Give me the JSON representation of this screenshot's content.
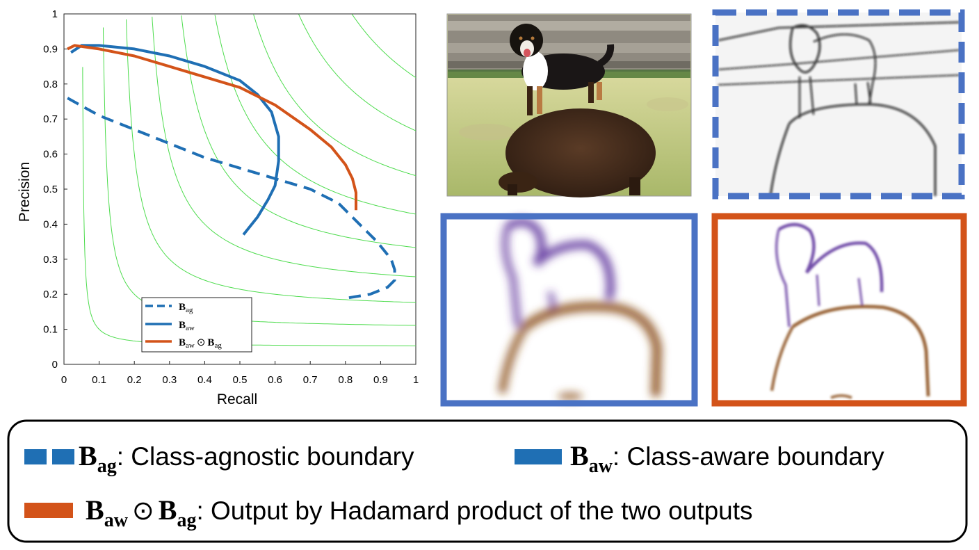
{
  "chart_data": {
    "type": "line",
    "xlabel": "Recall",
    "ylabel": "Precision",
    "xlim": [
      0,
      1
    ],
    "ylim": [
      0,
      1
    ],
    "xticks": [
      "0",
      "0.1",
      "0.2",
      "0.3",
      "0.4",
      "0.5",
      "0.6",
      "0.7",
      "0.8",
      "0.9",
      "1"
    ],
    "yticks": [
      "0",
      "0.1",
      "0.2",
      "0.3",
      "0.4",
      "0.5",
      "0.6",
      "0.7",
      "0.8",
      "0.9",
      "1"
    ],
    "grid": false,
    "iso_f_contours": [
      0.1,
      0.2,
      0.3,
      0.4,
      0.5,
      0.6,
      0.7,
      0.8,
      0.9
    ],
    "legend_placement": "lower-center",
    "series": [
      {
        "name": "B_ag",
        "style": "dashed",
        "color": "#1f6fb4",
        "x": [
          0.01,
          0.1,
          0.2,
          0.3,
          0.4,
          0.5,
          0.6,
          0.7,
          0.78,
          0.84,
          0.89,
          0.93,
          0.94,
          0.94,
          0.92,
          0.87,
          0.81
        ],
        "y": [
          0.76,
          0.71,
          0.67,
          0.63,
          0.59,
          0.56,
          0.53,
          0.5,
          0.46,
          0.4,
          0.35,
          0.3,
          0.27,
          0.24,
          0.22,
          0.2,
          0.19
        ]
      },
      {
        "name": "B_aw",
        "style": "solid",
        "color": "#1f6fb4",
        "x": [
          0.02,
          0.05,
          0.1,
          0.2,
          0.3,
          0.4,
          0.5,
          0.55,
          0.59,
          0.61,
          0.61,
          0.6,
          0.58,
          0.55,
          0.51
        ],
        "y": [
          0.89,
          0.91,
          0.91,
          0.9,
          0.88,
          0.85,
          0.81,
          0.77,
          0.72,
          0.65,
          0.58,
          0.51,
          0.47,
          0.42,
          0.37
        ]
      },
      {
        "name": "B_aw ⊙ B_ag",
        "style": "solid",
        "color": "#d35319",
        "x": [
          0.01,
          0.03,
          0.1,
          0.2,
          0.3,
          0.4,
          0.5,
          0.6,
          0.7,
          0.76,
          0.8,
          0.82,
          0.83,
          0.83
        ],
        "y": [
          0.9,
          0.91,
          0.9,
          0.88,
          0.85,
          0.82,
          0.79,
          0.74,
          0.67,
          0.62,
          0.57,
          0.53,
          0.49,
          0.44
        ]
      }
    ],
    "chart_legend": [
      {
        "symbol": "B",
        "sub": "ag"
      },
      {
        "symbol": "B",
        "sub": "aw"
      },
      {
        "symbol": "B",
        "sub": "aw",
        "op": "⊙",
        "symbol2": "B",
        "sub2": "ag"
      }
    ]
  },
  "panels": [
    {
      "name": "input-photo",
      "description_kind": "photo",
      "border": "thin-gray"
    },
    {
      "name": "class-agnostic-boundary-map",
      "border": "dashed",
      "color": "#4a72c4"
    },
    {
      "name": "class-aware-boundary-map",
      "border": "solid",
      "color": "#4a72c4"
    },
    {
      "name": "hadamard-product-boundary-map",
      "border": "solid",
      "color": "#d35319"
    }
  ],
  "legend_box": {
    "items": [
      {
        "symbol": "B",
        "sub": "ag",
        "text": ": Class-agnostic boundary"
      },
      {
        "symbol": "B",
        "sub": "aw",
        "text": ": Class-aware boundary"
      },
      {
        "symbol": "B",
        "sub": "aw",
        "op": "⊙",
        "symbol2": "B",
        "sub2": "ag",
        "text": ": Output by Hadamard product of the two outputs"
      }
    ]
  },
  "colors": {
    "blue": "#1f6fb4",
    "orange": "#d35319",
    "frame_blue": "#4a72c4",
    "contour": "#4ddc4d",
    "edge_purple": "#5b2d9a",
    "edge_brown": "#8a4e1a"
  }
}
